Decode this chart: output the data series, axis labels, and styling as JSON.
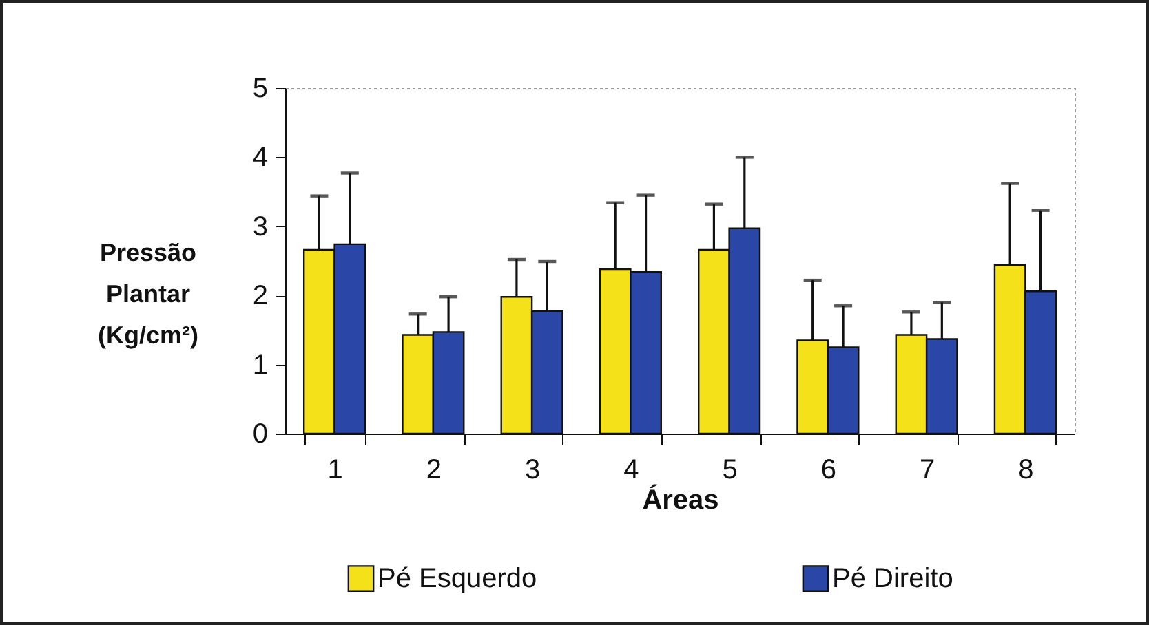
{
  "chart_data": {
    "type": "bar",
    "xlabel": "Áreas",
    "ylabel": "Pressão Plantar (Kg/cm²)",
    "categories": [
      "1",
      "2",
      "3",
      "4",
      "5",
      "6",
      "7",
      "8"
    ],
    "series": [
      {
        "name": "Pé Esquerdo",
        "color": "#f5e11a",
        "values": [
          2.66,
          1.43,
          1.98,
          2.38,
          2.66,
          1.35,
          1.43,
          2.44
        ],
        "errors": [
          [
            2.66,
            3.44
          ],
          [
            1.43,
            1.73
          ],
          [
            1.98,
            2.52
          ],
          [
            2.38,
            3.34
          ],
          [
            2.66,
            3.32
          ],
          [
            1.35,
            2.22
          ],
          [
            1.43,
            1.76
          ],
          [
            2.44,
            3.62
          ]
        ]
      },
      {
        "name": "Pé Direito",
        "color": "#2a47a8",
        "values": [
          2.74,
          1.47,
          1.77,
          2.34,
          2.97,
          1.25,
          1.37,
          2.06
        ],
        "errors": [
          [
            2.74,
            3.77
          ],
          [
            1.47,
            1.98
          ],
          [
            1.77,
            2.49
          ],
          [
            2.34,
            3.45
          ],
          [
            2.97,
            4.0
          ],
          [
            1.25,
            1.85
          ],
          [
            1.37,
            1.9
          ],
          [
            2.06,
            3.23
          ]
        ]
      }
    ],
    "ylim": [
      0,
      5
    ],
    "yticks": [
      0,
      1,
      2,
      3,
      4,
      5
    ],
    "grid": false,
    "legend": "bottom"
  }
}
